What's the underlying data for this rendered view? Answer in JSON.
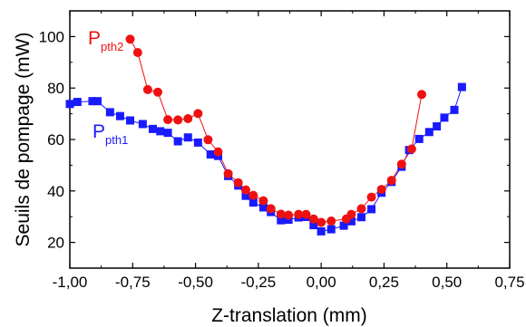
{
  "chart_data": {
    "type": "scatter",
    "xlabel": "Z-translation (mm)",
    "ylabel": "Seuils de pompage (mW)",
    "xlim": [
      -1.0,
      0.75
    ],
    "ylim": [
      10,
      110
    ],
    "x_ticks": [
      "-1,00",
      "-0,75",
      "-0,50",
      "-0,25",
      "0,00",
      "0,25",
      "0,50",
      "0,75"
    ],
    "y_ticks": [
      "20",
      "40",
      "60",
      "80",
      "100"
    ],
    "x_tick_values": [
      -1.0,
      -0.75,
      -0.5,
      -0.25,
      0.0,
      0.25,
      0.5,
      0.75
    ],
    "y_tick_values": [
      20,
      40,
      60,
      80,
      100
    ],
    "grid": false,
    "series": [
      {
        "name_main": "P",
        "name_sub": "pth1",
        "color": "#1a1aff",
        "marker": "square",
        "points": [
          [
            -1.0,
            73.8
          ],
          [
            -0.97,
            74.6
          ],
          [
            -0.91,
            74.9
          ],
          [
            -0.89,
            74.9
          ],
          [
            -0.84,
            70.6
          ],
          [
            -0.8,
            69.1
          ],
          [
            -0.76,
            67.4
          ],
          [
            -0.71,
            66.0
          ],
          [
            -0.67,
            64.1
          ],
          [
            -0.64,
            63.2
          ],
          [
            -0.61,
            62.6
          ],
          [
            -0.57,
            59.3
          ],
          [
            -0.53,
            60.8
          ],
          [
            -0.49,
            58.8
          ],
          [
            -0.44,
            54.2
          ],
          [
            -0.41,
            53.6
          ],
          [
            -0.37,
            45.8
          ],
          [
            -0.33,
            42.1
          ],
          [
            -0.3,
            38.1
          ],
          [
            -0.27,
            35.5
          ],
          [
            -0.23,
            33.6
          ],
          [
            -0.2,
            31.8
          ],
          [
            -0.16,
            28.6
          ],
          [
            -0.13,
            28.8
          ],
          [
            -0.09,
            29.7
          ],
          [
            -0.06,
            29.9
          ],
          [
            -0.03,
            26.7
          ],
          [
            0.0,
            24.3
          ],
          [
            0.04,
            25.1
          ],
          [
            0.09,
            26.5
          ],
          [
            0.12,
            28.2
          ],
          [
            0.16,
            29.8
          ],
          [
            0.2,
            32.9
          ],
          [
            0.24,
            39.3
          ],
          [
            0.28,
            43.5
          ],
          [
            0.32,
            49.4
          ],
          [
            0.35,
            55.9
          ],
          [
            0.39,
            60.2
          ],
          [
            0.43,
            62.9
          ],
          [
            0.46,
            65.1
          ],
          [
            0.49,
            68.5
          ],
          [
            0.53,
            71.5
          ],
          [
            0.56,
            80.4
          ]
        ]
      },
      {
        "name_main": "P",
        "name_sub": "pth2",
        "color": "#ee1111",
        "marker": "circle",
        "points": [
          [
            -0.76,
            99.0
          ],
          [
            -0.73,
            93.8
          ],
          [
            -0.69,
            79.4
          ],
          [
            -0.65,
            78.4
          ],
          [
            -0.61,
            67.7
          ],
          [
            -0.57,
            67.6
          ],
          [
            -0.53,
            68.1
          ],
          [
            -0.49,
            70.1
          ],
          [
            -0.45,
            59.9
          ],
          [
            -0.41,
            55.2
          ],
          [
            -0.37,
            46.7
          ],
          [
            -0.33,
            43.2
          ],
          [
            -0.3,
            40.4
          ],
          [
            -0.27,
            38.3
          ],
          [
            -0.23,
            36.2
          ],
          [
            -0.2,
            33.1
          ],
          [
            -0.16,
            31.0
          ],
          [
            -0.13,
            30.6
          ],
          [
            -0.09,
            30.9
          ],
          [
            -0.06,
            30.9
          ],
          [
            -0.03,
            29.1
          ],
          [
            0.0,
            27.8
          ],
          [
            0.04,
            28.3
          ],
          [
            0.1,
            29.1
          ],
          [
            0.12,
            30.9
          ],
          [
            0.16,
            33.1
          ],
          [
            0.2,
            37.6
          ],
          [
            0.24,
            40.6
          ],
          [
            0.28,
            44.1
          ],
          [
            0.32,
            50.4
          ],
          [
            0.36,
            56.3
          ],
          [
            0.4,
            77.5
          ]
        ]
      }
    ]
  }
}
